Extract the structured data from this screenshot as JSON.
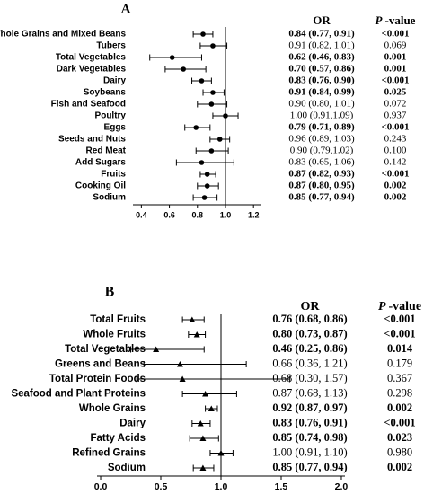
{
  "chart_data": [
    {
      "type": "forest",
      "title": "A",
      "marker": "circle",
      "color": "#000000",
      "or_header": "OR",
      "p_header_symbol": "P",
      "p_header_text": "-value",
      "categories": [
        "Whole Grains and Mixed Beans",
        "Tubers",
        "Total Vegetables",
        "Dark Vegetables",
        "Dairy",
        "Soybeans",
        "Fish and Seafood",
        "Poultry",
        "Eggs",
        "Seeds and Nuts",
        "Red Meat",
        "Add Sugars",
        "Fruits",
        "Cooking Oil",
        "Sodium"
      ],
      "values": [
        0.84,
        0.91,
        0.62,
        0.7,
        0.83,
        0.91,
        0.9,
        1.0,
        0.79,
        0.96,
        0.9,
        0.83,
        0.87,
        0.87,
        0.85
      ],
      "lower": [
        0.77,
        0.82,
        0.46,
        0.57,
        0.76,
        0.84,
        0.8,
        0.91,
        0.71,
        0.89,
        0.79,
        0.65,
        0.82,
        0.8,
        0.77
      ],
      "upper": [
        0.91,
        1.01,
        0.83,
        0.86,
        0.9,
        0.99,
        1.01,
        1.09,
        0.89,
        1.03,
        1.02,
        1.06,
        0.93,
        0.95,
        0.94
      ],
      "value_labels": [
        "0.84 (0.77, 0.91)",
        "0.91 (0.82, 1.01)",
        "0.62 (0.46, 0.83)",
        "0.70 (0.57, 0.86)",
        "0.83 (0.76, 0.90)",
        "0.91 (0.84, 0.99)",
        "0.90 (0.80, 1.01)",
        "1.00 (0.91,1.09)",
        "0.79 (0.71, 0.89)",
        "0.96 (0.89, 1.03)",
        "0.90 (0.79,1.02)",
        "0.83 (0.65, 1.06)",
        "0.87 (0.82, 0.93)",
        "0.87 (0.80, 0.95)",
        "0.85 (0.77, 0.94)"
      ],
      "p_values": [
        "<0.001",
        "0.069",
        "0.001",
        "0.001",
        "<0.001",
        "0.025",
        "0.072",
        "0.937",
        "<0.001",
        "0.243",
        "0.100",
        "0.142",
        "<0.001",
        "0.002",
        "0.002"
      ],
      "bold": [
        true,
        false,
        true,
        true,
        true,
        true,
        false,
        false,
        true,
        false,
        false,
        false,
        true,
        true,
        true
      ],
      "reference": 1,
      "xlim": [
        0.34,
        1.25
      ],
      "xticks": [
        0.4,
        0.6,
        0.8,
        {
          "value": 1,
          "label": "1.0"
        },
        1.2
      ]
    },
    {
      "type": "forest",
      "title": "B",
      "marker": "triangle",
      "color": "#000000",
      "or_header": "OR",
      "p_header_symbol": "P",
      "p_header_text": "-value",
      "categories": [
        "Total Fruits",
        "Whole Fruits",
        "Total Vegetables",
        "Greens and Beans",
        "Total Protein Foods",
        "Seafood and Plant Proteins",
        "Whole Grains",
        "Dairy",
        "Fatty Acids",
        "Refined Grains",
        "Sodium"
      ],
      "values": [
        0.76,
        0.8,
        0.46,
        0.66,
        0.68,
        0.87,
        0.92,
        0.83,
        0.85,
        1.0,
        0.85
      ],
      "lower": [
        0.68,
        0.73,
        0.25,
        0.36,
        0.3,
        0.68,
        0.87,
        0.76,
        0.74,
        0.91,
        0.77
      ],
      "upper": [
        0.86,
        0.87,
        0.86,
        1.21,
        1.57,
        1.13,
        0.97,
        0.91,
        0.98,
        1.1,
        0.94
      ],
      "value_labels": [
        "0.76 (0.68, 0.86)",
        "0.80 (0.73, 0.87)",
        "0.46 (0.25, 0.86)",
        "0.66 (0.36, 1.21)",
        "0.68 (0.30, 1.57)",
        "0.87 (0.68, 1.13)",
        "0.92 (0.87, 0.97)",
        "0.83 (0.76, 0.91)",
        "0.85 (0.74, 0.98)",
        "1.00 (0.91, 1.10)",
        "0.85 (0.77, 0.94)"
      ],
      "p_values": [
        "<0.001",
        "<0.001",
        "0.014",
        "0.179",
        "0.367",
        "0.298",
        "0.002",
        "<0.001",
        "0.023",
        "0.980",
        "0.002"
      ],
      "bold": [
        true,
        true,
        true,
        false,
        false,
        false,
        true,
        true,
        true,
        false,
        true
      ],
      "reference": 1,
      "xlim": [
        -0.03,
        2.03
      ],
      "xticks": [
        {
          "value": 0,
          "label": "0.0"
        },
        0.5,
        {
          "value": 1,
          "label": "1.0"
        },
        1.5,
        {
          "value": 2,
          "label": "2.0"
        }
      ]
    }
  ]
}
